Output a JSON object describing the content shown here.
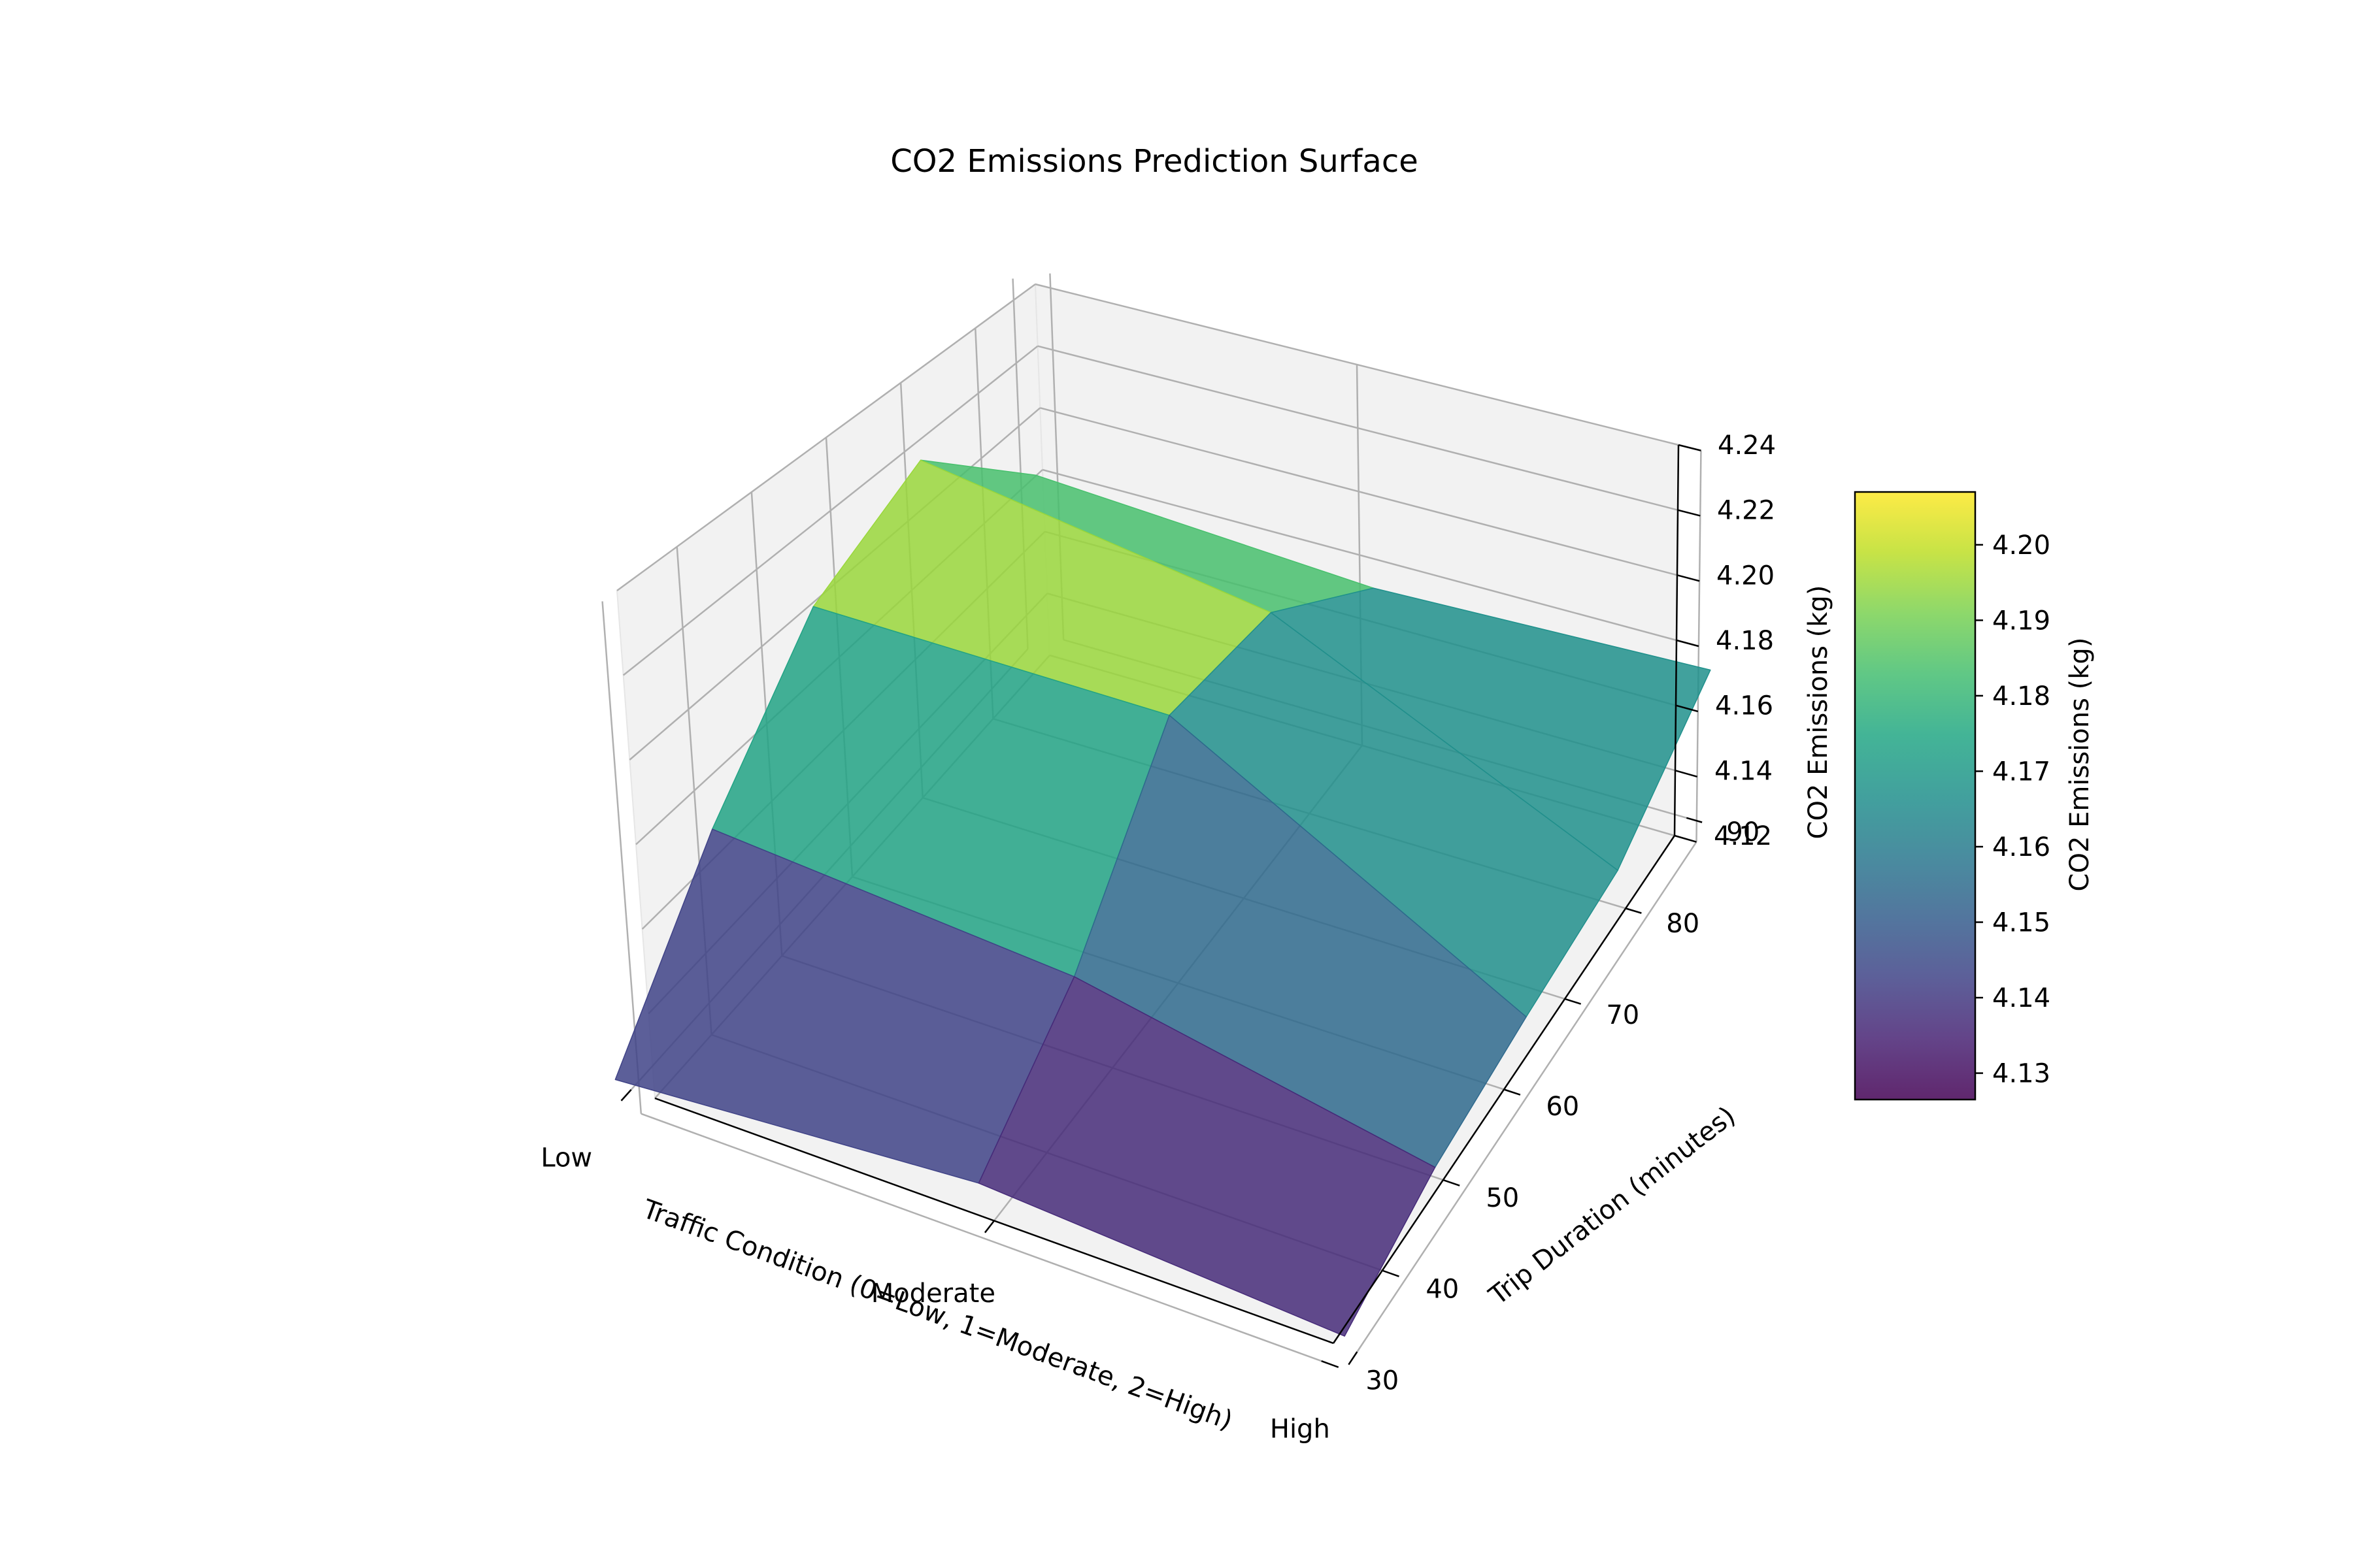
{
  "chart_data": {
    "type": "surface3d",
    "title": "CO2 Emissions Prediction Surface",
    "x": {
      "label": "Traffic Condition (0=Low, 1=Moderate, 2=High)",
      "ticks": [
        0,
        1,
        2
      ],
      "tick_labels": [
        "Low",
        "Moderate",
        "High"
      ],
      "range": [
        0,
        2
      ]
    },
    "y": {
      "label": "Trip Duration (minutes)",
      "values": [
        30,
        45,
        60,
        75,
        90
      ],
      "ticks": [
        30,
        40,
        50,
        60,
        70,
        80,
        90
      ],
      "tick_labels": [
        "30",
        "40",
        "50",
        "60",
        "70",
        "80",
        "90"
      ],
      "range": [
        30,
        90
      ]
    },
    "z": {
      "label": "CO2 Emissions (kg)",
      "ticks": [
        4.12,
        4.14,
        4.16,
        4.18,
        4.2,
        4.22,
        4.24
      ],
      "tick_labels": [
        "4.12",
        "4.14",
        "4.16",
        "4.18",
        "4.20",
        "4.22",
        "4.24"
      ],
      "range": [
        4.12,
        4.24
      ]
    },
    "z_values": [
      [
        4.126,
        4.16,
        4.192,
        4.207,
        4.172
      ],
      [
        4.132,
        4.152,
        4.19,
        4.19,
        4.165
      ],
      [
        4.127,
        4.135,
        4.14,
        4.145,
        4.168
      ]
    ],
    "colorbar": {
      "label": "CO2 Emissions (kg)",
      "ticks": [
        4.13,
        4.14,
        4.15,
        4.16,
        4.17,
        4.18,
        4.19,
        4.2
      ],
      "tick_labels": [
        "4.13",
        "4.14",
        "4.15",
        "4.16",
        "4.17",
        "4.18",
        "4.19",
        "4.20"
      ],
      "range": [
        4.1265,
        4.207
      ]
    },
    "colormap": "viridis",
    "grid": true
  }
}
